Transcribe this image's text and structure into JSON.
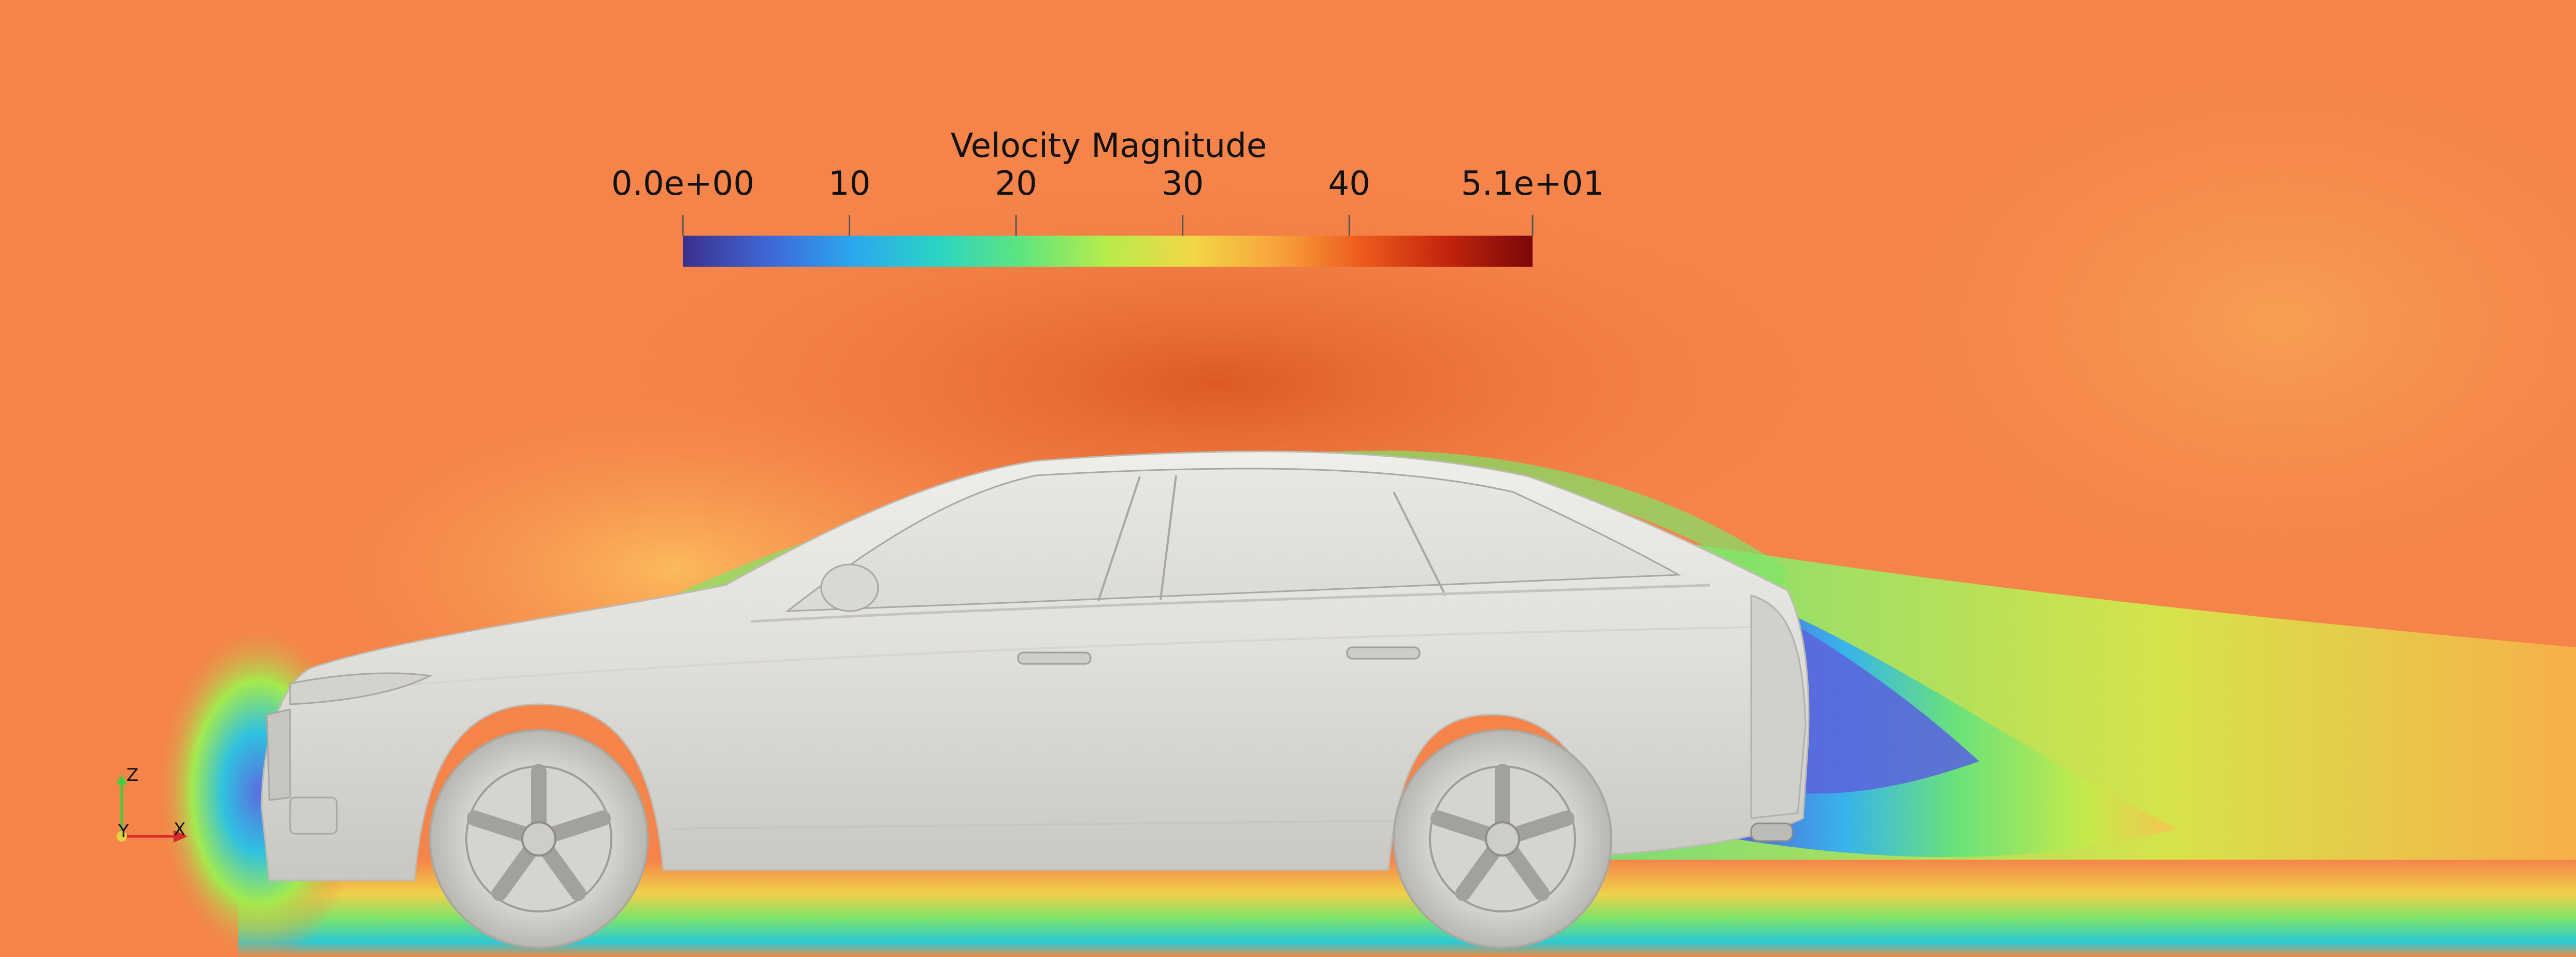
{
  "colorbar": {
    "title": "Velocity Magnitude",
    "range": [
      0,
      51
    ],
    "ticks": [
      {
        "value": 0,
        "label": "0.0e+00"
      },
      {
        "value": 10,
        "label": "10"
      },
      {
        "value": 20,
        "label": "20"
      },
      {
        "value": 30,
        "label": "30"
      },
      {
        "value": 40,
        "label": "40"
      },
      {
        "value": 51,
        "label": "5.1e+01"
      }
    ],
    "colormap": [
      "#3b2f8c",
      "#3f66d6",
      "#2ba7ef",
      "#2ad4c3",
      "#60e57d",
      "#b8ec4b",
      "#f2d746",
      "#f8a23c",
      "#ec5a1c",
      "#c2240d",
      "#7a0707"
    ]
  },
  "orientation_axes": {
    "z_label": "Z",
    "y_label": "Y",
    "x_label": "X",
    "z_color": "#3cd23c",
    "y_color": "#e6d23c",
    "x_color": "#d82a2a"
  },
  "colors": {
    "freestream": "#f5844a",
    "car_body": "#e4e2dc"
  }
}
